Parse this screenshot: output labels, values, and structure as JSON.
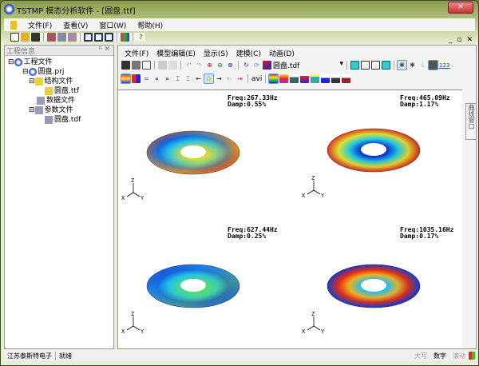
{
  "window": {
    "title": "TSTMP 模态分析软件 - [圆盘.ttf]",
    "close": "✕"
  },
  "menu": [
    "文件(F)",
    "查看(V)",
    "窗口(W)",
    "帮助(H)"
  ],
  "left_panel": {
    "title": "工程信息",
    "pin": "ᵖ",
    "close": "✕",
    "tree": [
      {
        "label": "工程文件",
        "level": 0
      },
      {
        "label": "圆盘.prj",
        "level": 1
      },
      {
        "label": "结构文件",
        "level": 2
      },
      {
        "label": "圆盘.ttf",
        "level": 3
      },
      {
        "label": "数据文件",
        "level": 2
      },
      {
        "label": "参数文件",
        "level": 2
      },
      {
        "label": "圆盘.tdf",
        "level": 3
      }
    ]
  },
  "child": {
    "menu": [
      "文件(F)",
      "模型编辑(E)",
      "显示(S)",
      "建模(C)",
      "动画(D)"
    ],
    "file_select": "圆盘.tdf",
    "avi": "avi",
    "num_label": "123",
    "min": "_",
    "restore": "▫",
    "close": "✕"
  },
  "modes": [
    {
      "freq": "Freq:267.33Hz",
      "damp": "Damp:0.55%",
      "colors": [
        "#1030d0",
        "#20c0f0",
        "#f0e020",
        "#e04010"
      ]
    },
    {
      "freq": "Freq:465.09Hz",
      "damp": "Damp:1.17%",
      "colors": [
        "#f0e020",
        "#20d0e0",
        "#1030d0",
        "#e03010"
      ]
    },
    {
      "freq": "Freq:627.44Hz",
      "damp": "Damp:0.25%",
      "colors": [
        "#1030d0",
        "#20c0f0",
        "#60e060",
        "#2050e0"
      ]
    },
    {
      "freq": "Freq:1035.16Hz",
      "damp": "Damp:0.17%",
      "colors": [
        "#e02010",
        "#f0b020",
        "#20c0f0",
        "#1030d0"
      ]
    }
  ],
  "axis_labels": {
    "z": "Z",
    "x": "X",
    "y": "Y"
  },
  "side_tab": "曲线窗口",
  "status": {
    "company": "江苏泰斯特电子",
    "state": "就绪",
    "caps": "大写",
    "num": "数字",
    "scroll": "滚动"
  }
}
